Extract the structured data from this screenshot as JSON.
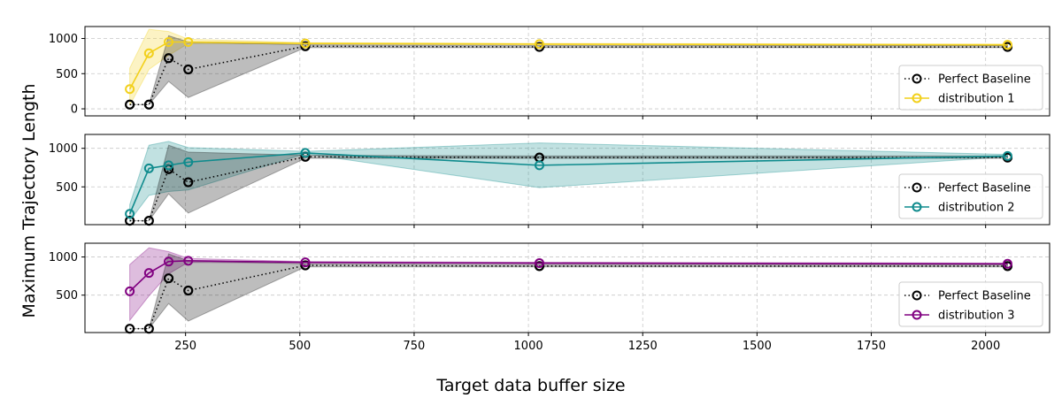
{
  "chart_data": {
    "type": "line",
    "xlabel": "Target data buffer size",
    "ylabel": "Maximum Trajectory Length",
    "x": [
      128,
      170,
      213,
      256,
      512,
      1024,
      2048
    ],
    "xlim": [
      30,
      2140
    ],
    "xticks": [
      250,
      500,
      750,
      1000,
      1250,
      1500,
      1750,
      2000
    ],
    "grid": true,
    "legend_position": "lower-right",
    "panels": [
      {
        "ylim": [
          -100,
          1170
        ],
        "yticks": [
          0,
          500,
          1000
        ],
        "baseline": {
          "name": "Perfect Baseline",
          "color": "#000000",
          "values": [
            60,
            60,
            720,
            560,
            890,
            880,
            880
          ],
          "band_lower": [
            60,
            60,
            390,
            160,
            870,
            870,
            870
          ],
          "band_upper": [
            60,
            60,
            1040,
            950,
            910,
            900,
            900
          ]
        },
        "series": {
          "name": "distribution 1",
          "color": "#f2d01b",
          "values": [
            280,
            790,
            950,
            950,
            930,
            920,
            910
          ],
          "band_lower": [
            50,
            560,
            760,
            930,
            920,
            910,
            900
          ],
          "band_upper": [
            580,
            1130,
            1100,
            990,
            940,
            930,
            920
          ]
        }
      },
      {
        "ylim": [
          10,
          1180
        ],
        "yticks": [
          500,
          1000
        ],
        "baseline": {
          "name": "Perfect Baseline",
          "color": "#000000",
          "values": [
            60,
            60,
            730,
            560,
            890,
            880,
            880
          ],
          "band_lower": [
            60,
            60,
            410,
            160,
            870,
            870,
            870
          ],
          "band_upper": [
            60,
            60,
            1040,
            950,
            910,
            900,
            900
          ]
        },
        "series": {
          "name": "distribution 2",
          "color": "#0f8b8d",
          "values": [
            150,
            740,
            780,
            820,
            940,
            780,
            900
          ],
          "band_lower": [
            60,
            390,
            440,
            460,
            930,
            490,
            890
          ],
          "band_upper": [
            270,
            1040,
            1090,
            1010,
            960,
            1070,
            920
          ]
        }
      },
      {
        "ylim": [
          10,
          1180
        ],
        "yticks": [
          500,
          1000
        ],
        "baseline": {
          "name": "Perfect Baseline",
          "color": "#000000",
          "values": [
            60,
            60,
            720,
            560,
            890,
            880,
            880
          ],
          "band_lower": [
            60,
            60,
            390,
            160,
            870,
            870,
            870
          ],
          "band_upper": [
            60,
            60,
            1040,
            950,
            910,
            900,
            900
          ]
        },
        "series": {
          "name": "distribution 3",
          "color": "#800080",
          "values": [
            550,
            790,
            940,
            950,
            930,
            920,
            910
          ],
          "band_lower": [
            170,
            490,
            780,
            930,
            920,
            910,
            900
          ],
          "band_upper": [
            900,
            1120,
            1070,
            980,
            940,
            930,
            920
          ]
        }
      }
    ]
  }
}
